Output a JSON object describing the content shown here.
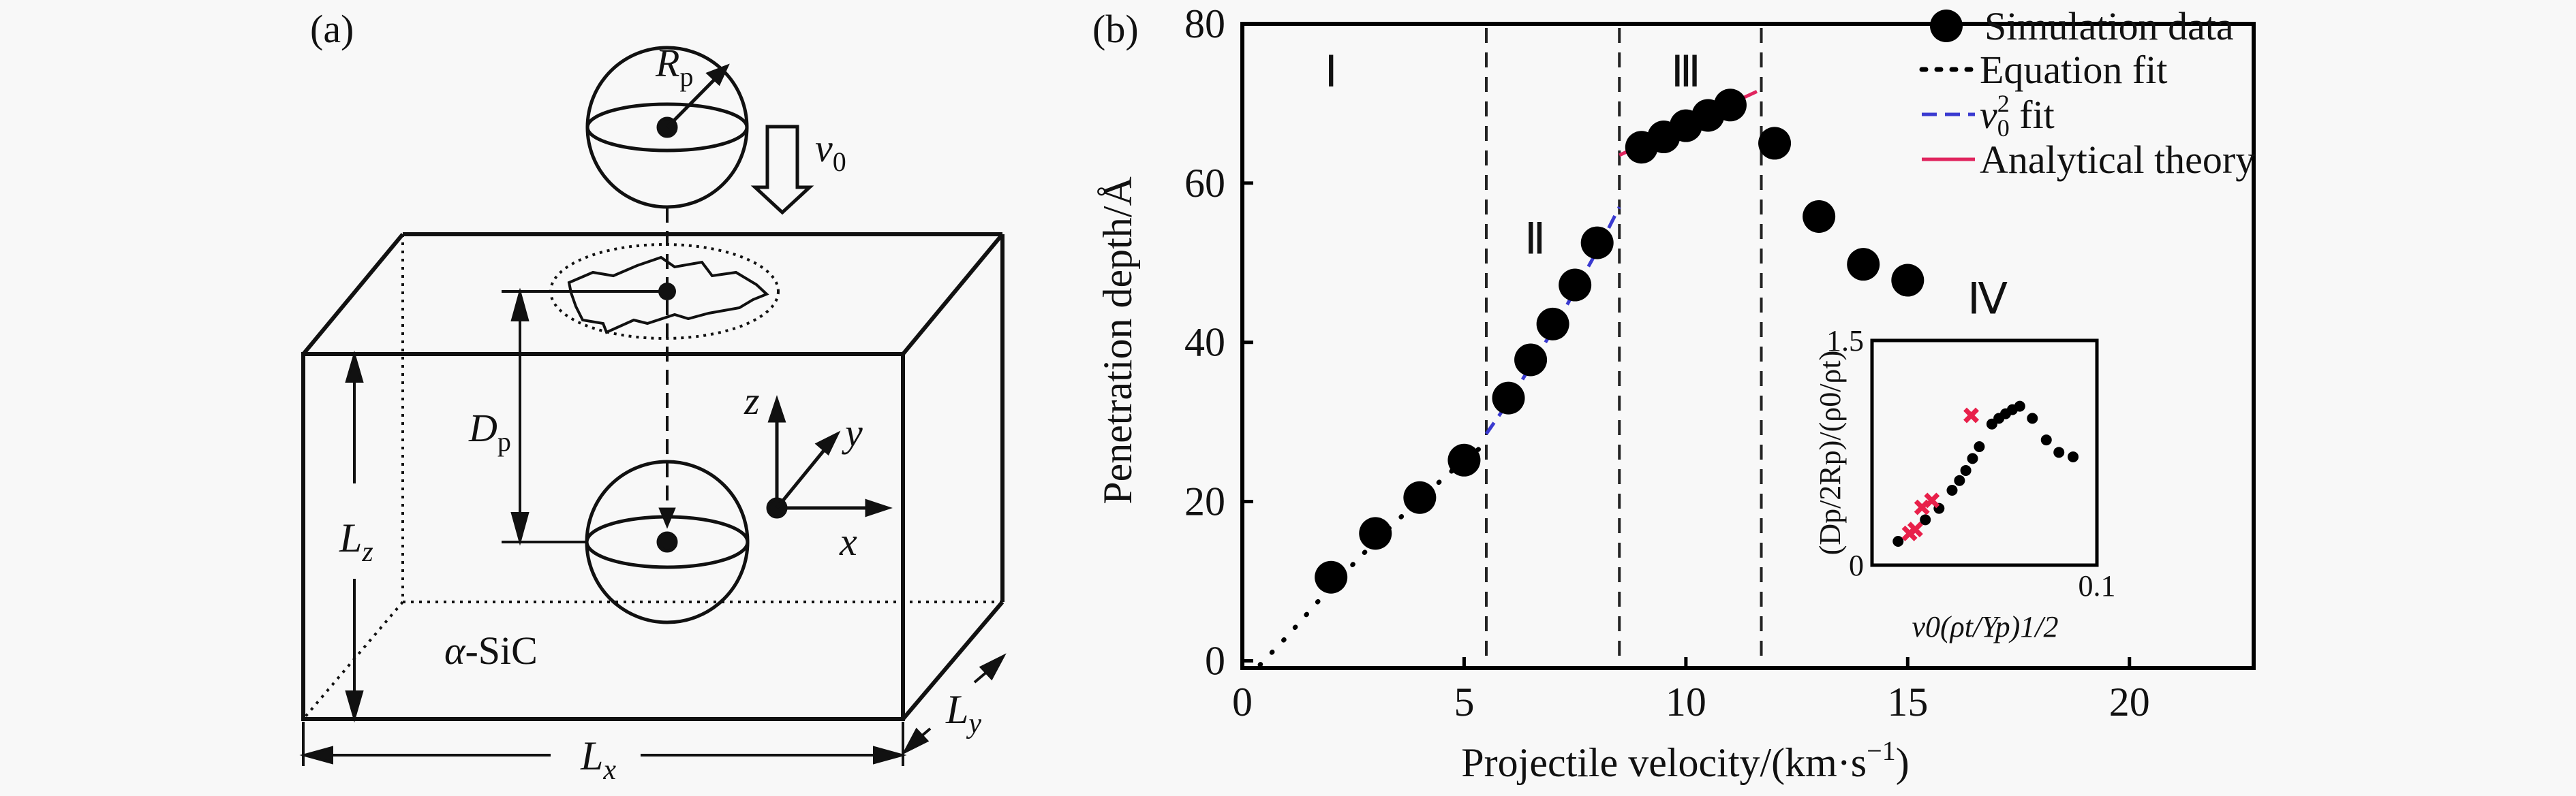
{
  "panel_a": {
    "label": "(a)",
    "rp": "R",
    "rp_sub": "p",
    "v0": "v",
    "v0_sub": "0",
    "dp": "D",
    "dp_sub": "p",
    "lz": "L",
    "lz_sub": "z",
    "lx": "L",
    "lx_sub": "x",
    "ly": "L",
    "ly_sub": "y",
    "material_a": "α",
    "material_b": "-SiC",
    "axis_z": "z",
    "axis_y": "y",
    "axis_x": "x"
  },
  "chart_data": {
    "type": "scatter",
    "panel_label": "(b)",
    "xlabel": "Projectile velocity/(km·s",
    "xlabel_sup": "−1",
    "xlabel_end": ")",
    "ylabel": "Penetration depth/Å",
    "xlim": [
      0,
      22.8
    ],
    "ylim": [
      -0.9,
      80
    ],
    "xticks": [
      0,
      5,
      10,
      15,
      20
    ],
    "yticks": [
      0,
      20,
      40,
      60,
      80
    ],
    "regime_boundaries": [
      5.5,
      8.5,
      11.7
    ],
    "regimes": [
      {
        "label": "Ⅰ",
        "x": 2.0,
        "y": 74
      },
      {
        "label": "Ⅱ",
        "x": 6.6,
        "y": 53
      },
      {
        "label": "Ⅲ",
        "x": 10.0,
        "y": 74
      },
      {
        "label": "Ⅳ",
        "x": 16.8,
        "y": 45.5
      }
    ],
    "series": [
      {
        "name": "Simulation data",
        "style": "marker",
        "color": "#000000",
        "x": [
          2,
          3,
          4,
          5,
          6,
          6.5,
          7,
          7.5,
          8,
          9,
          9.5,
          10,
          10.5,
          11,
          12,
          13,
          14,
          15
        ],
        "y": [
          10.5,
          16,
          20.5,
          25.2,
          33,
          37.8,
          42.3,
          47.2,
          52.5,
          64.5,
          65.8,
          67.2,
          68.5,
          69.8,
          65,
          55.8,
          49.8,
          47.8
        ]
      },
      {
        "name": "Equation fit",
        "style": "dotted",
        "color": "#000000",
        "x": [
          0.4,
          1,
          2,
          3,
          4,
          5,
          5.5
        ],
        "y": [
          -0.5,
          3,
          9.3,
          15,
          20.3,
          25.2,
          27.3
        ]
      },
      {
        "name": "v",
        "name_sup": "2",
        "name_sub": "0",
        "name_end": " fit",
        "style": "dashed",
        "color": "#3a3ad0",
        "x": [
          5.5,
          6,
          7,
          8,
          8.5
        ],
        "y": [
          28.5,
          32.5,
          41.5,
          51.5,
          57
        ]
      },
      {
        "name": "Analytical theory",
        "style": "solid",
        "color": "#e0245e",
        "x": [
          8.5,
          11.6
        ],
        "y": [
          63.5,
          71.5
        ]
      }
    ],
    "inset": {
      "xlim": [
        0,
        0.1
      ],
      "ylim": [
        0,
        1.5
      ],
      "xtick_labels": [
        "0.1"
      ],
      "ytick_labels": [
        "0",
        "1.5"
      ],
      "xlabel": "v0(ρt/Yp)1/2",
      "ylabel": "(Dp/2Rp)/(ρ0/ρt)",
      "black_points": {
        "x": [
          0.0116,
          0.0237,
          0.0298,
          0.0356,
          0.0389,
          0.0417,
          0.0447,
          0.0477,
          0.0533,
          0.0564,
          0.0594,
          0.0624,
          0.0657,
          0.0713,
          0.0775,
          0.0831,
          0.0894
        ],
        "y": [
          0.159,
          0.303,
          0.379,
          0.5,
          0.565,
          0.632,
          0.712,
          0.791,
          0.942,
          0.98,
          1.011,
          1.038,
          1.061,
          0.98,
          0.836,
          0.753,
          0.723
        ]
      },
      "red_points": {
        "x": [
          0.0167,
          0.0192,
          0.0222,
          0.0266,
          0.0441
        ],
        "y": [
          0.212,
          0.238,
          0.386,
          0.432,
          1.0
        ]
      },
      "red_color": "#e8204a"
    }
  }
}
